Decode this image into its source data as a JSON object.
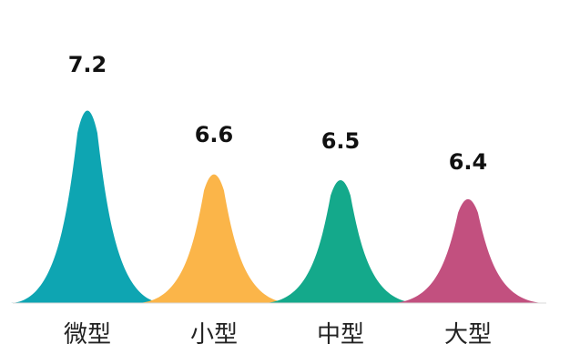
{
  "chart_data": {
    "type": "area",
    "title": "",
    "xlabel": "",
    "ylabel": "",
    "grid": false,
    "legend": "none",
    "categories": [
      "微型",
      "小型",
      "中型",
      "大型"
    ],
    "values": [
      7.2,
      6.6,
      6.5,
      6.4
    ],
    "value_labels": [
      "7.2",
      "6.6",
      "6.5",
      "6.4"
    ],
    "colors": [
      "#0ea5b2",
      "#fbb549",
      "#14a98b",
      "#c2507f"
    ]
  }
}
